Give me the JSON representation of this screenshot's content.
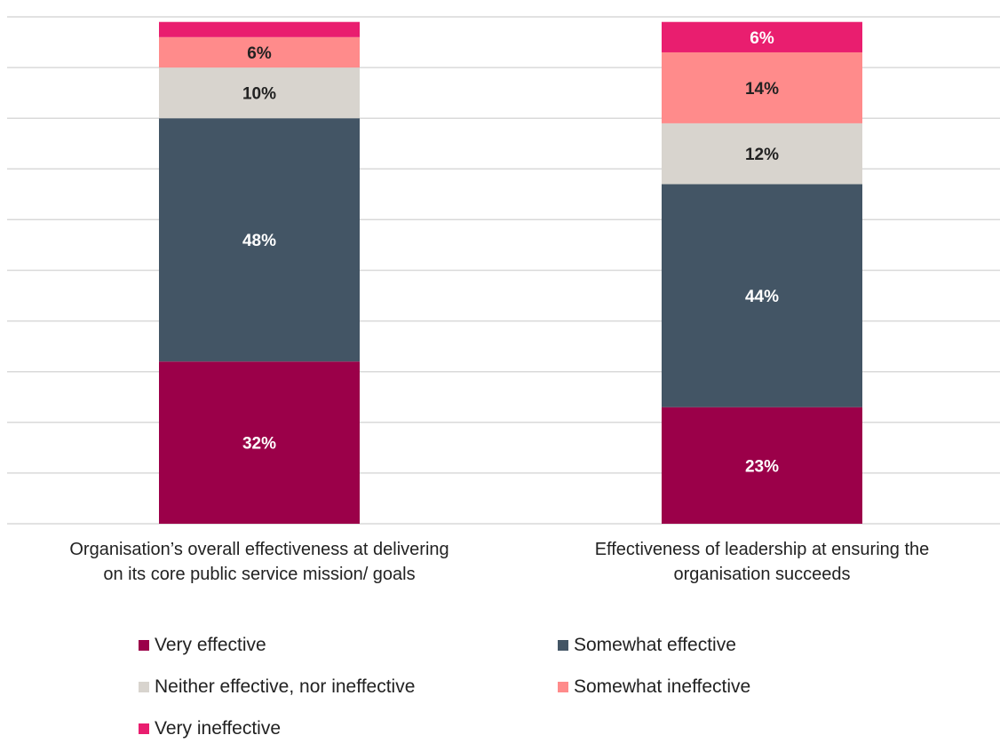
{
  "chart_data": {
    "type": "bar",
    "stacked": true,
    "orientation": "vertical",
    "categories": [
      [
        "Organisation’s overall effectiveness at delivering",
        "on its core public service mission/ goals"
      ],
      [
        "Effectiveness of leadership at ensuring the",
        "organisation succeeds"
      ]
    ],
    "series": [
      {
        "name": "Very effective",
        "color": "#9b0049",
        "values": [
          32,
          23
        ],
        "labels": [
          "32%",
          "23%"
        ],
        "label_color": "#ffffff"
      },
      {
        "name": "Somewhat effective",
        "color": "#435565",
        "values": [
          48,
          44
        ],
        "labels": [
          "48%",
          "44%"
        ],
        "label_color": "#ffffff"
      },
      {
        "name": "Neither effective, nor ineffective",
        "color": "#d8d4ce",
        "values": [
          10,
          12
        ],
        "labels": [
          "10%",
          "12%"
        ],
        "label_color": "#222222"
      },
      {
        "name": "Somewhat ineffective",
        "color": "#ff8b8b",
        "values": [
          6,
          14
        ],
        "labels": [
          "6%",
          "14%"
        ],
        "label_color": "#222222"
      },
      {
        "name": "Very ineffective",
        "color": "#e91e6f",
        "values": [
          3,
          6
        ],
        "labels": [
          "",
          "6%"
        ],
        "label_color": "#ffffff"
      }
    ],
    "ylim": [
      0,
      100
    ],
    "grid": true,
    "y_axis_visible": false,
    "legend_position": "bottom"
  }
}
